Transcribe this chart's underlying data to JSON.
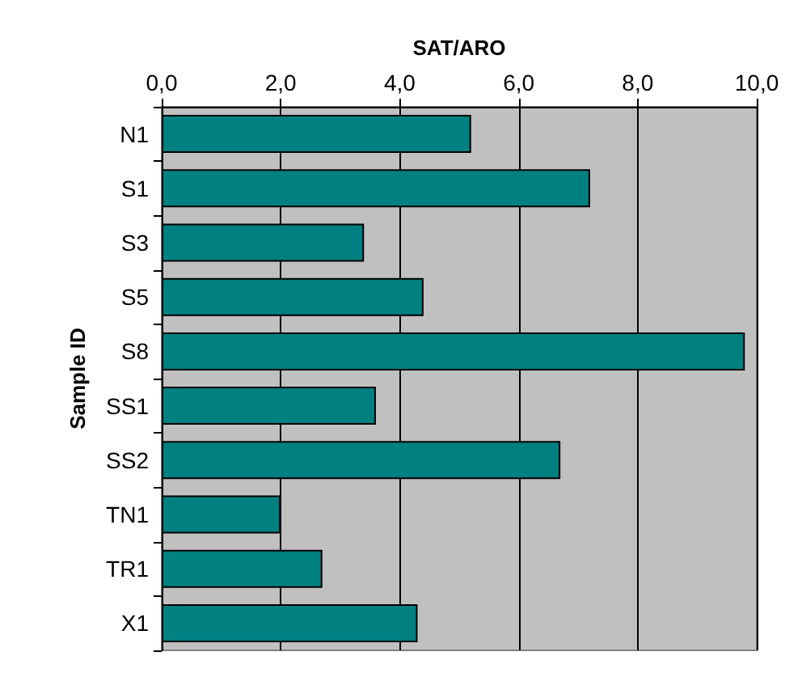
{
  "chart_data": {
    "type": "bar",
    "orientation": "horizontal",
    "xlabel": "SAT/ARO",
    "ylabel": "Sample ID",
    "categories": [
      "N1",
      "S1",
      "S3",
      "S5",
      "S8",
      "SS1",
      "SS2",
      "TN1",
      "TR1",
      "X1"
    ],
    "values": [
      5.2,
      7.2,
      3.4,
      4.4,
      9.8,
      3.6,
      6.7,
      2.0,
      2.7,
      4.3
    ],
    "color": "#008080",
    "xlim": [
      0,
      10
    ],
    "xticks": [
      {
        "value": 0,
        "label": "0,0"
      },
      {
        "value": 2,
        "label": "2,0"
      },
      {
        "value": 4,
        "label": "4,0"
      },
      {
        "value": 6,
        "label": "6,0"
      },
      {
        "value": 8,
        "label": "8,0"
      },
      {
        "value": 10,
        "label": "10,0"
      }
    ],
    "grid": "x"
  }
}
